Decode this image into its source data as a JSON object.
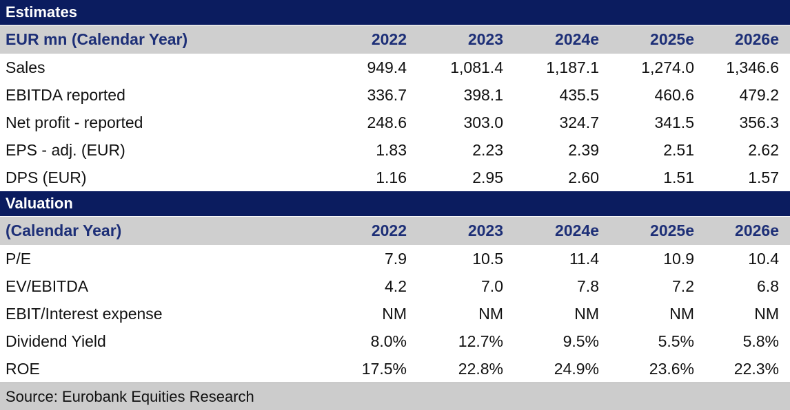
{
  "estimates": {
    "title": "Estimates",
    "header": {
      "label": "EUR mn (Calendar Year)",
      "years": [
        "2022",
        "2023",
        "2024e",
        "2025e",
        "2026e"
      ]
    },
    "rows": [
      {
        "label": "Sales",
        "values": [
          "949.4",
          "1,081.4",
          "1,187.1",
          "1,274.0",
          "1,346.6"
        ]
      },
      {
        "label": "EBITDA reported",
        "values": [
          "336.7",
          "398.1",
          "435.5",
          "460.6",
          "479.2"
        ]
      },
      {
        "label": "Net profit - reported",
        "values": [
          "248.6",
          "303.0",
          "324.7",
          "341.5",
          "356.3"
        ]
      },
      {
        "label": "EPS - adj. (EUR)",
        "values": [
          "1.83",
          "2.23",
          "2.39",
          "2.51",
          "2.62"
        ]
      },
      {
        "label": "DPS (EUR)",
        "values": [
          "1.16",
          "2.95",
          "2.60",
          "1.51",
          "1.57"
        ]
      }
    ]
  },
  "valuation": {
    "title": "Valuation",
    "header": {
      "label": "(Calendar Year)",
      "years": [
        "2022",
        "2023",
        "2024e",
        "2025e",
        "2026e"
      ]
    },
    "rows": [
      {
        "label": "P/E",
        "values": [
          "7.9",
          "10.5",
          "11.4",
          "10.9",
          "10.4"
        ]
      },
      {
        "label": "EV/EBITDA",
        "values": [
          "4.2",
          "7.0",
          "7.8",
          "7.2",
          "6.8"
        ]
      },
      {
        "label": "EBIT/Interest expense",
        "values": [
          "NM",
          "NM",
          "NM",
          "NM",
          "NM"
        ]
      },
      {
        "label": "Dividend Yield",
        "values": [
          "8.0%",
          "12.7%",
          "9.5%",
          "5.5%",
          "5.8%"
        ]
      },
      {
        "label": "ROE",
        "values": [
          "17.5%",
          "22.8%",
          "24.9%",
          "23.6%",
          "22.3%"
        ]
      }
    ]
  },
  "source": "Source: Eurobank Equities Research",
  "colors": {
    "section_header_bg": "#0b1c5f",
    "subheader_bg": "#cfcfcf",
    "subheader_text": "#1d2f77",
    "source_bg": "#cccccc"
  }
}
